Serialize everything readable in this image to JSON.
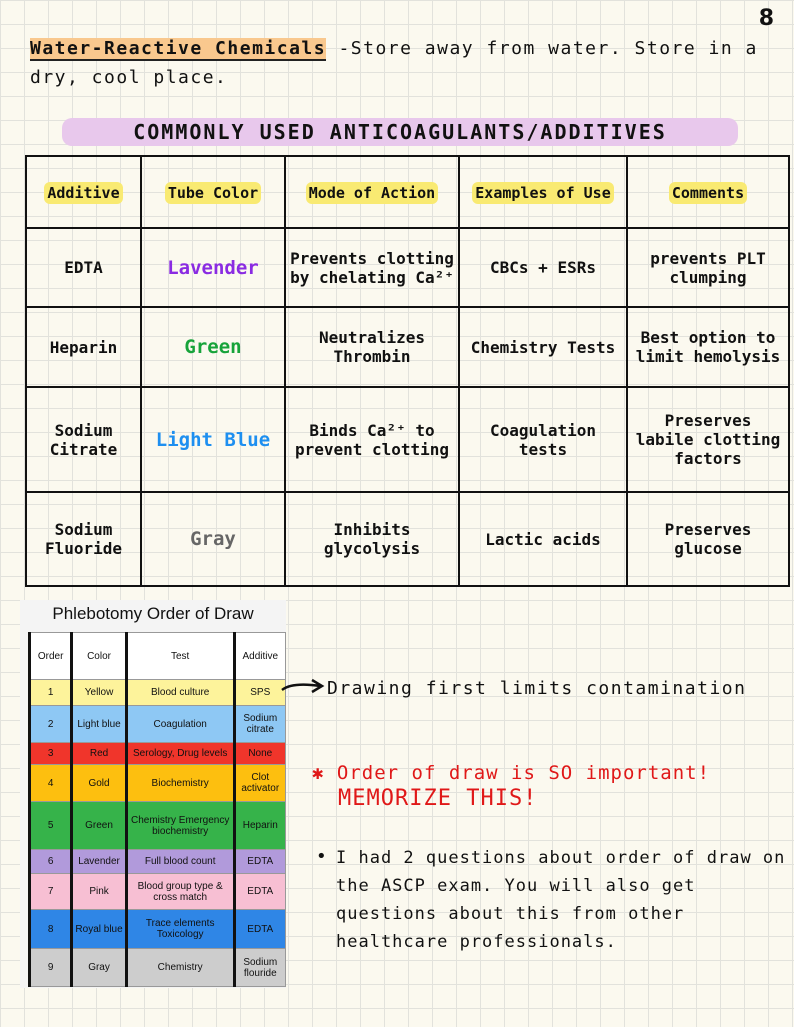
{
  "page_number": "8",
  "intro": {
    "heading": "Water-Reactive Chemicals",
    "text": "-Store away from water. Store in a dry, cool place."
  },
  "anticoagulants": {
    "title": "COMMONLY USED ANTICOAGULANTS/ADDITIVES",
    "headers": [
      "Additive",
      "Tube Color",
      "Mode of Action",
      "Examples of Use",
      "Comments"
    ],
    "rows": [
      [
        "EDTA",
        "Lavender",
        "Prevents clotting by chelating Ca²⁺",
        "CBCs + ESRs",
        "prevents PLT clumping"
      ],
      [
        "Heparin",
        "Green",
        "Neutralizes Thrombin",
        "Chemistry Tests",
        "Best option to limit hemolysis"
      ],
      [
        "Sodium Citrate",
        "Light Blue",
        "Binds Ca²⁺ to prevent clotting",
        "Coagulation tests",
        "Preserves labile clotting factors"
      ],
      [
        "Sodium Fluoride",
        "Gray",
        "Inhibits glycolysis",
        "Lactic acids",
        "Preserves glucose"
      ]
    ]
  },
  "order_of_draw": {
    "title": "Phlebotomy Order of Draw",
    "headers": [
      "Order",
      "Color",
      "Test",
      "Additive"
    ],
    "rows": [
      [
        "1",
        "Yellow",
        "Blood culture",
        "SPS"
      ],
      [
        "2",
        "Light blue",
        "Coagulation",
        "Sodium citrate"
      ],
      [
        "3",
        "Red",
        "Serology, Drug levels",
        "None"
      ],
      [
        "4",
        "Gold",
        "Biochemistry",
        "Clot activator"
      ],
      [
        "5",
        "Green",
        "Chemistry Emergency biochemistry",
        "Heparin"
      ],
      [
        "6",
        "Lavender",
        "Full blood count",
        "EDTA"
      ],
      [
        "7",
        "Pink",
        "Blood group type & cross match",
        "EDTA"
      ],
      [
        "8",
        "Royal blue",
        "Trace elements Toxicology",
        "EDTA"
      ],
      [
        "9",
        "Gray",
        "Chemistry",
        "Sodium flouride"
      ]
    ]
  },
  "notes": {
    "arrow_note": "Drawing first limits contamination",
    "important": "Order of draw is SO important!",
    "memorize": "MEMORIZE THIS!",
    "bullet": "I had 2 questions about order of draw on the ASCP exam. You will also get questions about this from other healthcare professionals."
  }
}
